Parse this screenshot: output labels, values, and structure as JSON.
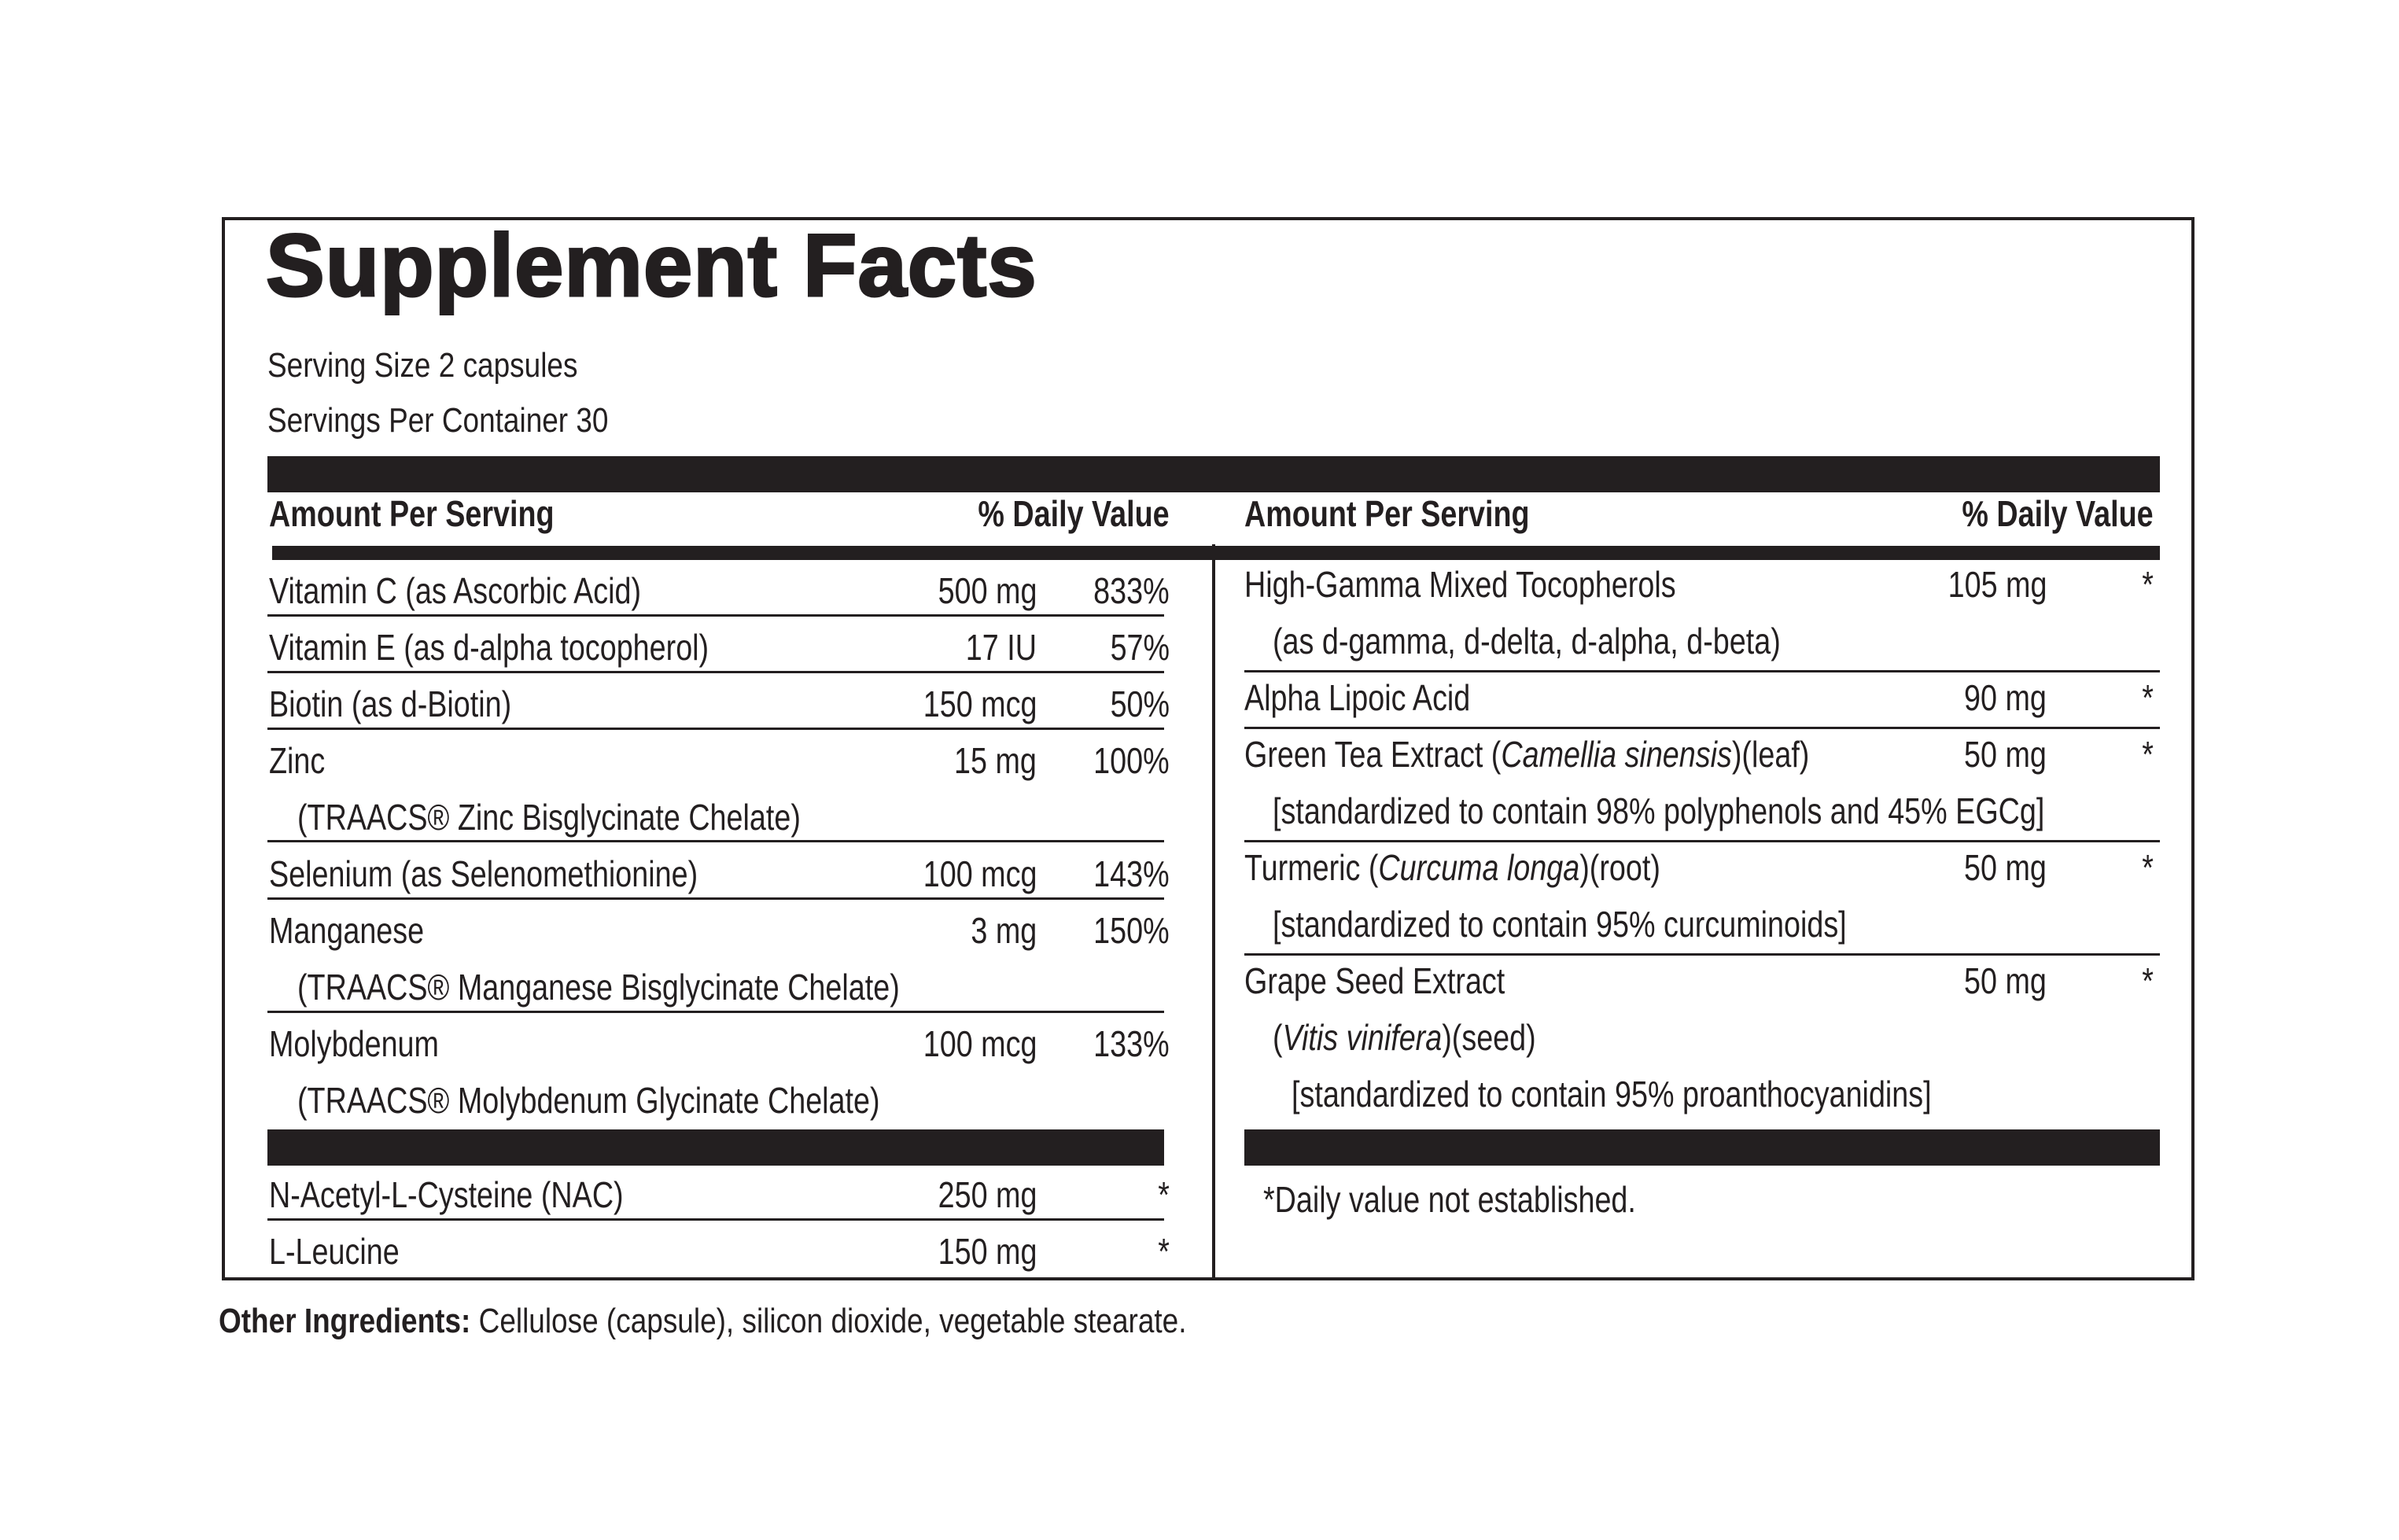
{
  "title": "Supplement Facts",
  "serving_size": "Serving Size 2 capsules",
  "servings_per_container": "Servings Per Container 30",
  "left": {
    "header_amount": "Amount Per Serving",
    "header_dv": "% Daily Value",
    "rows": [
      {
        "name": "Vitamin C (as Ascorbic Acid)",
        "amount": "500 mg",
        "dv": "833%"
      },
      {
        "name": "Vitamin E (as d-alpha tocopherol)",
        "amount": "17 IU",
        "dv": "57%"
      },
      {
        "name": "Biotin (as d-Biotin)",
        "amount": "150 mcg",
        "dv": "50%"
      },
      {
        "name": "Zinc",
        "amount": "15 mg",
        "dv": "100%",
        "sub": "(TRAACS® Zinc Bisglycinate Chelate)"
      },
      {
        "name": "Selenium (as Selenomethionine)",
        "amount": "100 mcg",
        "dv": "143%"
      },
      {
        "name": "Manganese",
        "amount": "3 mg",
        "dv": "150%",
        "sub": "(TRAACS® Manganese Bisglycinate Chelate)"
      },
      {
        "name": "Molybdenum",
        "amount": "100 mcg",
        "dv": "133%",
        "sub": "(TRAACS® Molybdenum Glycinate Chelate)"
      }
    ],
    "rows2": [
      {
        "name": "N-Acetyl-L-Cysteine (NAC)",
        "amount": "250 mg",
        "dv": "*"
      },
      {
        "name": "L-Leucine",
        "amount": "150 mg",
        "dv": "*"
      }
    ]
  },
  "right": {
    "header_amount": "Amount Per Serving",
    "header_dv": "% Daily Value",
    "rows": [
      {
        "name": "High-Gamma Mixed Tocopherols",
        "amount": "105 mg",
        "dv": "*",
        "sub": "(as d-gamma, d-delta, d-alpha, d-beta)"
      },
      {
        "name": "Alpha Lipoic Acid",
        "amount": "90 mg",
        "dv": "*"
      },
      {
        "name_pre": "Green Tea Extract (",
        "name_italic": "Camellia sinensis",
        "name_post": ")(leaf)",
        "amount": "50 mg",
        "dv": "*",
        "sub": "[standardized to contain 98% polyphenols and 45% EGCg]"
      },
      {
        "name_pre": "Turmeric (",
        "name_italic": "Curcuma longa",
        "name_post": ")(root)",
        "amount": "50 mg",
        "dv": "*",
        "sub": "[standardized to contain 95% curcuminoids]"
      },
      {
        "name": "Grape Seed Extract",
        "amount": "50 mg",
        "dv": "*",
        "sub_pre": "(",
        "sub_italic": "Vitis vinifera",
        "sub_post": ")(seed)",
        "sub2": "[standardized to contain 95% proanthocyanidins]"
      }
    ],
    "footnote": "*Daily value not established."
  },
  "other_ingredients_label": "Other Ingredients:",
  "other_ingredients_text": " Cellulose (capsule), silicon dioxide, vegetable stearate."
}
